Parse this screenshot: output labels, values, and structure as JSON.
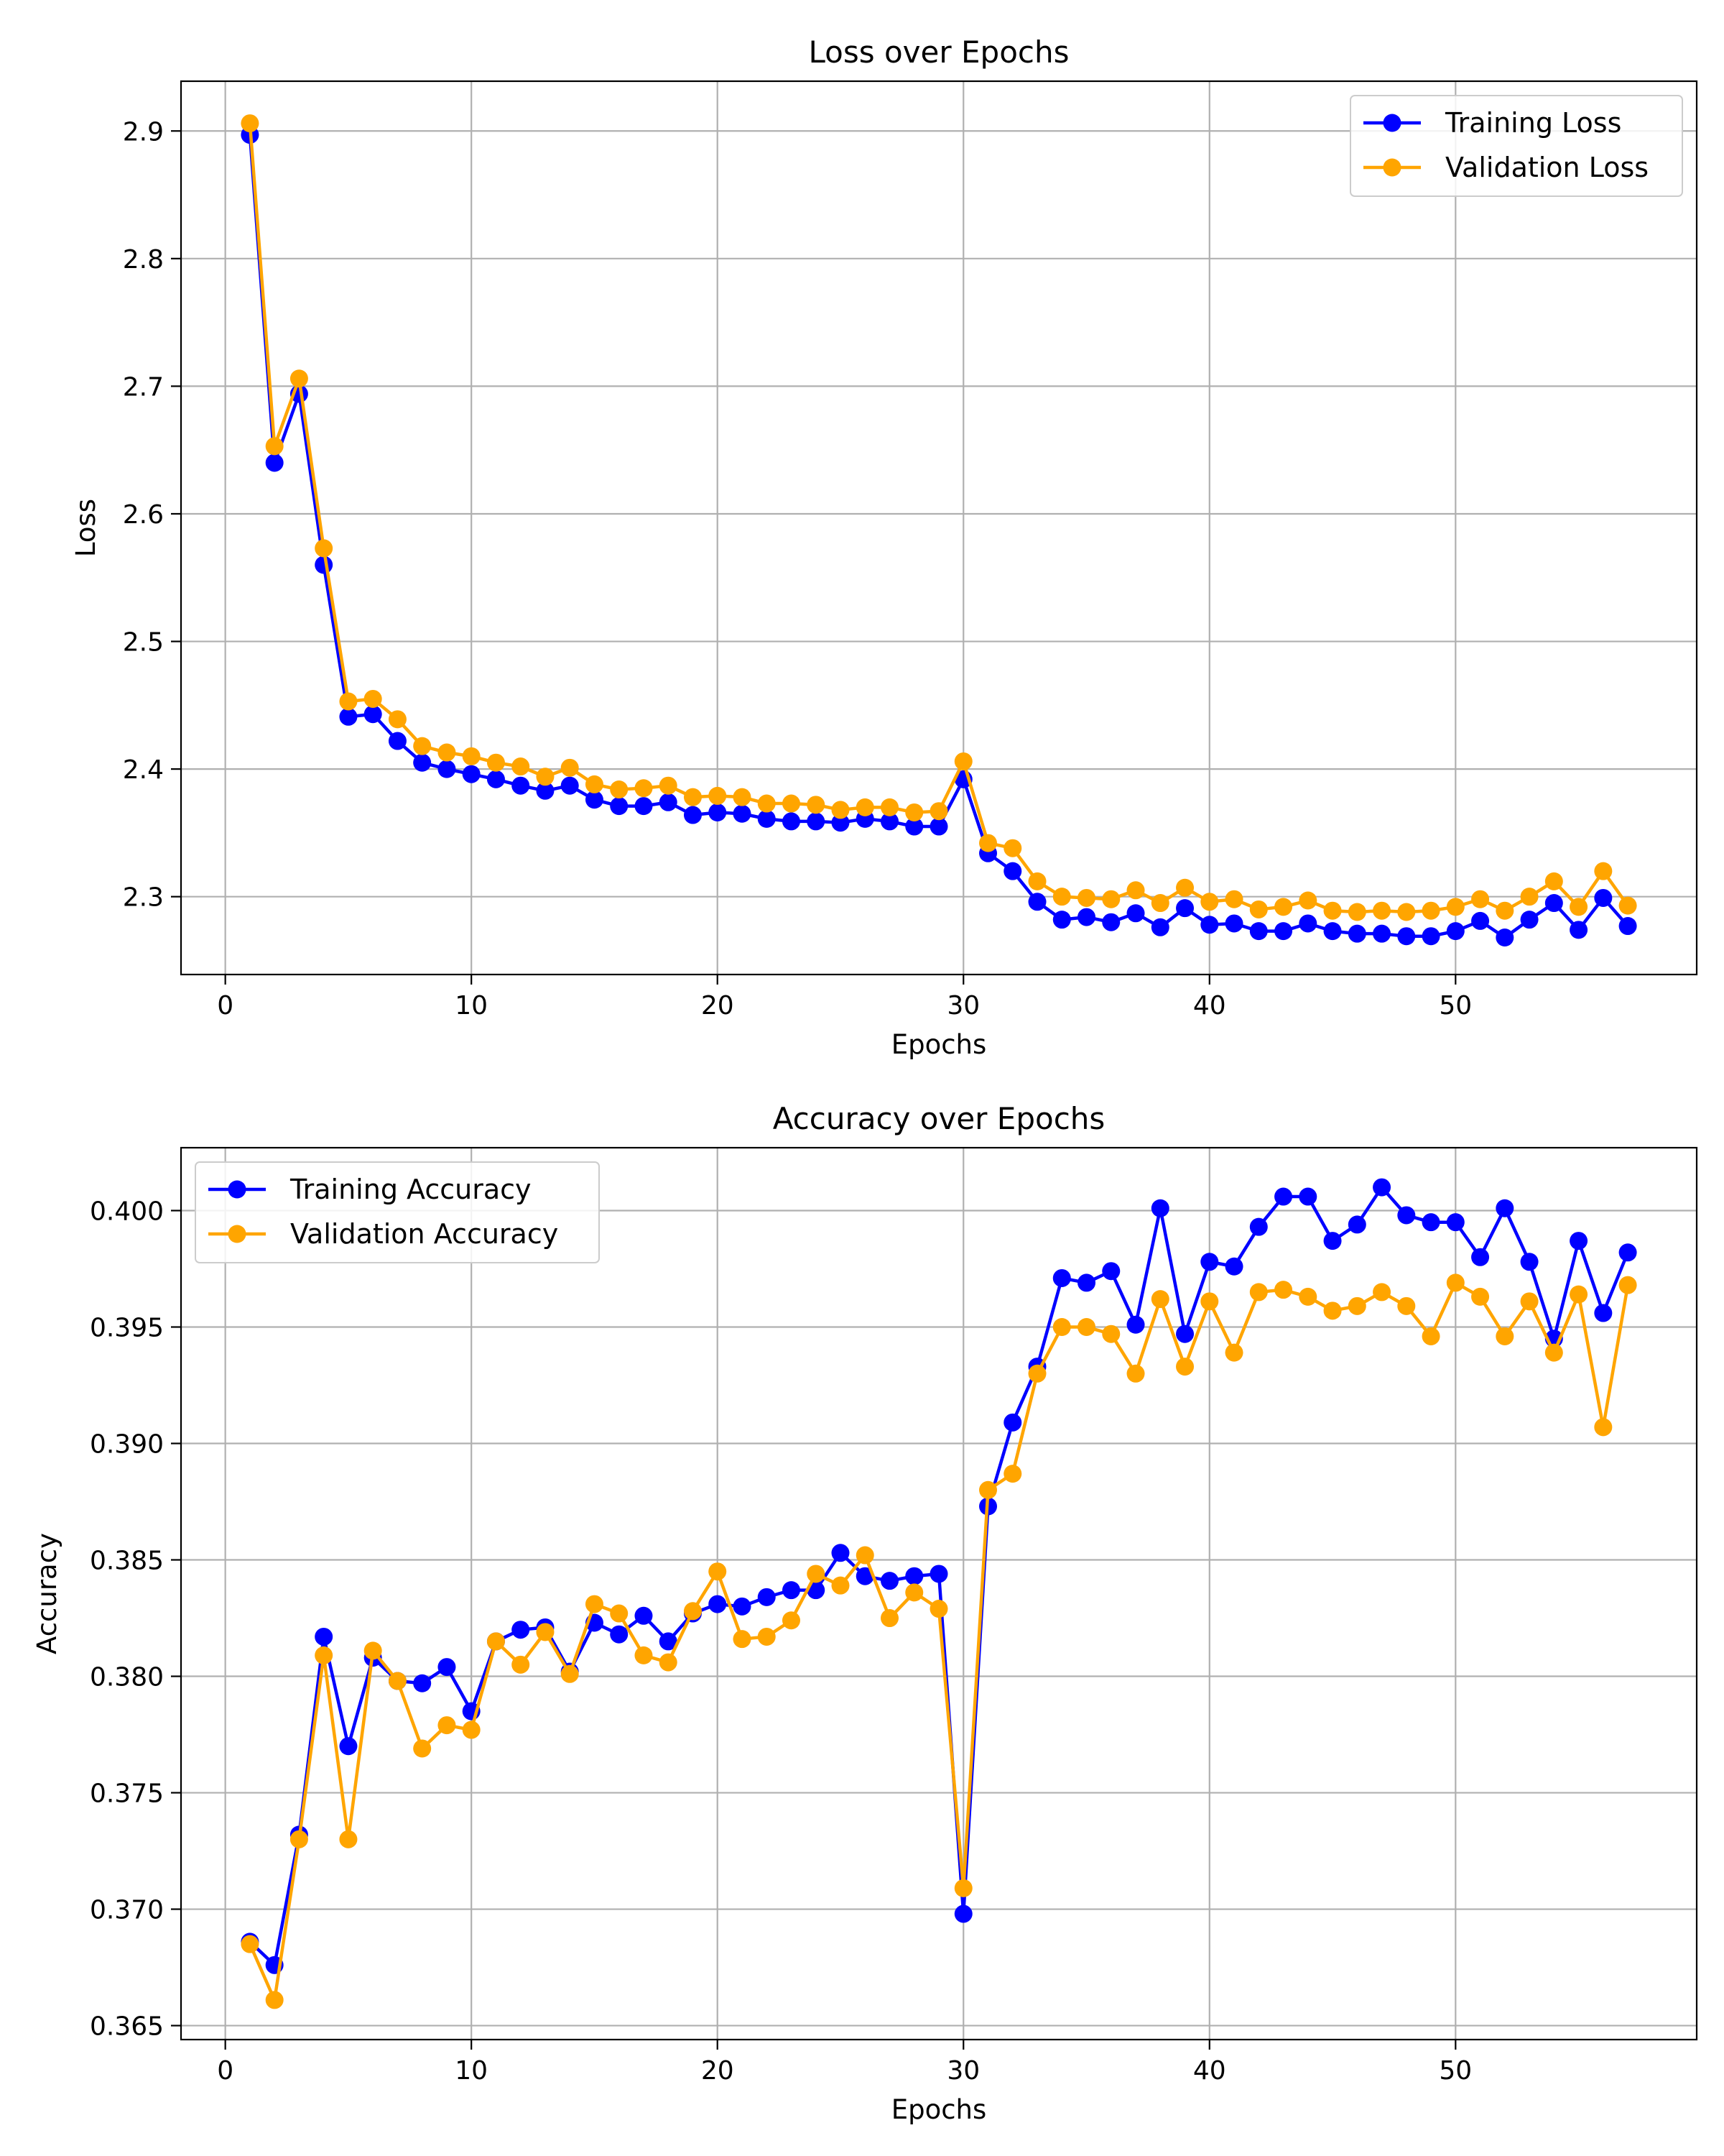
{
  "chart_data": [
    {
      "type": "line",
      "title": "Loss over Epochs",
      "xlabel": "Epochs",
      "ylabel": "Loss",
      "xlim": [
        -1.8,
        59.8
      ],
      "ylim": [
        2.239,
        2.939
      ],
      "xticks": [
        0,
        10,
        20,
        30,
        40,
        50
      ],
      "xtick_labels": [
        "0",
        "10",
        "20",
        "30",
        "40",
        "50"
      ],
      "yticks": [
        2.3,
        2.4,
        2.5,
        2.6,
        2.7,
        2.8,
        2.9
      ],
      "ytick_labels": [
        "2.3",
        "2.4",
        "2.5",
        "2.6",
        "2.7",
        "2.8",
        "2.9"
      ],
      "grid": true,
      "legend_position": "top-right",
      "x": [
        1,
        2,
        3,
        4,
        5,
        6,
        7,
        8,
        9,
        10,
        11,
        12,
        13,
        14,
        15,
        16,
        17,
        18,
        19,
        20,
        21,
        22,
        23,
        24,
        25,
        26,
        27,
        28,
        29,
        30,
        31,
        32,
        33,
        34,
        35,
        36,
        37,
        38,
        39,
        40,
        41,
        42,
        43,
        44,
        45,
        46,
        47,
        48,
        49,
        50,
        51,
        52,
        53,
        54,
        55,
        56,
        57
      ],
      "series": [
        {
          "name": "Training Loss",
          "color": "#0000ff",
          "values": [
            2.897,
            2.64,
            2.694,
            2.56,
            2.441,
            2.443,
            2.422,
            2.405,
            2.4,
            2.396,
            2.392,
            2.387,
            2.383,
            2.387,
            2.376,
            2.371,
            2.371,
            2.374,
            2.364,
            2.366,
            2.365,
            2.361,
            2.359,
            2.359,
            2.358,
            2.361,
            2.359,
            2.355,
            2.355,
            2.392,
            2.334,
            2.32,
            2.296,
            2.282,
            2.284,
            2.28,
            2.287,
            2.276,
            2.291,
            2.278,
            2.279,
            2.273,
            2.273,
            2.279,
            2.273,
            2.271,
            2.271,
            2.269,
            2.269,
            2.273,
            2.281,
            2.268,
            2.282,
            2.295,
            2.274,
            2.299,
            2.277
          ]
        },
        {
          "name": "Validation Loss",
          "color": "#ffa500",
          "values": [
            2.906,
            2.653,
            2.706,
            2.573,
            2.453,
            2.455,
            2.439,
            2.418,
            2.413,
            2.41,
            2.405,
            2.402,
            2.394,
            2.401,
            2.388,
            2.384,
            2.385,
            2.387,
            2.378,
            2.379,
            2.378,
            2.373,
            2.373,
            2.372,
            2.368,
            2.37,
            2.37,
            2.366,
            2.367,
            2.406,
            2.342,
            2.338,
            2.312,
            2.3,
            2.299,
            2.298,
            2.305,
            2.295,
            2.307,
            2.296,
            2.298,
            2.29,
            2.292,
            2.297,
            2.289,
            2.288,
            2.289,
            2.288,
            2.289,
            2.292,
            2.298,
            2.289,
            2.3,
            2.312,
            2.292,
            2.32,
            2.293
          ]
        }
      ]
    },
    {
      "type": "line",
      "title": "Accuracy over Epochs",
      "xlabel": "Epochs",
      "ylabel": "Accuracy",
      "xlim": [
        -1.8,
        59.8
      ],
      "ylim": [
        0.3644,
        0.4027
      ],
      "xticks": [
        0,
        10,
        20,
        30,
        40,
        50
      ],
      "xtick_labels": [
        "0",
        "10",
        "20",
        "30",
        "40",
        "50"
      ],
      "yticks": [
        0.365,
        0.37,
        0.375,
        0.38,
        0.385,
        0.39,
        0.395,
        0.4
      ],
      "ytick_labels": [
        "0.365",
        "0.370",
        "0.375",
        "0.380",
        "0.385",
        "0.390",
        "0.395",
        "0.400"
      ],
      "grid": true,
      "legend_position": "top-left",
      "x": [
        1,
        2,
        3,
        4,
        5,
        6,
        7,
        8,
        9,
        10,
        11,
        12,
        13,
        14,
        15,
        16,
        17,
        18,
        19,
        20,
        21,
        22,
        23,
        24,
        25,
        26,
        27,
        28,
        29,
        30,
        31,
        32,
        33,
        34,
        35,
        36,
        37,
        38,
        39,
        40,
        41,
        42,
        43,
        44,
        45,
        46,
        47,
        48,
        49,
        50,
        51,
        52,
        53,
        54,
        55,
        56,
        57
      ],
      "series": [
        {
          "name": "Training Accuracy",
          "color": "#0000ff",
          "values": [
            0.3686,
            0.3676,
            0.3732,
            0.3817,
            0.377,
            0.3808,
            0.3798,
            0.3797,
            0.3804,
            0.3785,
            0.3815,
            0.382,
            0.3821,
            0.3802,
            0.3823,
            0.3818,
            0.3826,
            0.3815,
            0.3827,
            0.3831,
            0.383,
            0.3834,
            0.3837,
            0.3837,
            0.3853,
            0.3843,
            0.3841,
            0.3843,
            0.3844,
            0.3698,
            0.3873,
            0.3909,
            0.3933,
            0.3971,
            0.3969,
            0.3974,
            0.3951,
            0.4001,
            0.3947,
            0.3978,
            0.3976,
            0.3993,
            0.4006,
            0.4006,
            0.3987,
            0.3994,
            0.401,
            0.3998,
            0.3995,
            0.3995,
            0.398,
            0.4001,
            0.3978,
            0.3945,
            0.3987,
            0.3956,
            0.3982
          ]
        },
        {
          "name": "Validation Accuracy",
          "color": "#ffa500",
          "values": [
            0.3685,
            0.3661,
            0.373,
            0.3809,
            0.373,
            0.3811,
            0.3798,
            0.3769,
            0.3779,
            0.3777,
            0.3815,
            0.3805,
            0.3819,
            0.3801,
            0.3831,
            0.3827,
            0.3809,
            0.3806,
            0.3828,
            0.3845,
            0.3816,
            0.3817,
            0.3824,
            0.3844,
            0.3839,
            0.3852,
            0.3825,
            0.3836,
            0.3829,
            0.3709,
            0.388,
            0.3887,
            0.393,
            0.395,
            0.395,
            0.3947,
            0.393,
            0.3962,
            0.3933,
            0.3961,
            0.3939,
            0.3965,
            0.3966,
            0.3963,
            0.3957,
            0.3959,
            0.3965,
            0.3959,
            0.3946,
            0.3969,
            0.3963,
            0.3946,
            0.3961,
            0.3939,
            0.3964,
            0.3907,
            0.3968
          ]
        }
      ]
    }
  ]
}
